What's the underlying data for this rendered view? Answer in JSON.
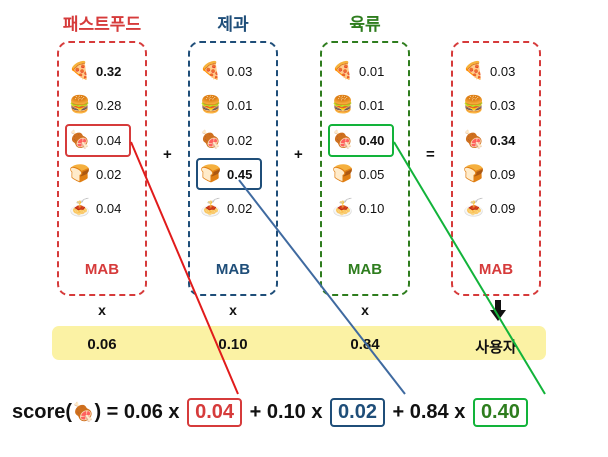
{
  "icons": {
    "pizza": "🍕",
    "burger": "🍔",
    "meat": "🍖",
    "bread": "🍞",
    "pasta": "🍝"
  },
  "colors": {
    "red": "#d63b3b",
    "blue": "#1f4e79",
    "green": "#2e7d1e",
    "bright_green": "#12b33a",
    "yellow": "#fbf2a4"
  },
  "columns": [
    {
      "title": "패스트푸드",
      "mab": "MAB",
      "weight": "0.06",
      "items": [
        {
          "icon": "pizza",
          "value": "0.32",
          "bold": true
        },
        {
          "icon": "burger",
          "value": "0.28",
          "bold": false
        },
        {
          "icon": "meat",
          "value": "0.04",
          "bold": false
        },
        {
          "icon": "bread",
          "value": "0.02",
          "bold": false
        },
        {
          "icon": "pasta",
          "value": "0.04",
          "bold": false
        }
      ]
    },
    {
      "title": "제과",
      "mab": "MAB",
      "weight": "0.10",
      "items": [
        {
          "icon": "pizza",
          "value": "0.03",
          "bold": false
        },
        {
          "icon": "burger",
          "value": "0.01",
          "bold": false
        },
        {
          "icon": "meat",
          "value": "0.02",
          "bold": false
        },
        {
          "icon": "bread",
          "value": "0.45",
          "bold": true
        },
        {
          "icon": "pasta",
          "value": "0.02",
          "bold": false
        }
      ]
    },
    {
      "title": "육류",
      "mab": "MAB",
      "weight": "0.84",
      "items": [
        {
          "icon": "pizza",
          "value": "0.01",
          "bold": false
        },
        {
          "icon": "burger",
          "value": "0.01",
          "bold": false
        },
        {
          "icon": "meat",
          "value": "0.40",
          "bold": true
        },
        {
          "icon": "bread",
          "value": "0.05",
          "bold": false
        },
        {
          "icon": "pasta",
          "value": "0.10",
          "bold": false
        }
      ]
    },
    {
      "title": "",
      "mab": "MAB",
      "weight": "사용자",
      "items": [
        {
          "icon": "pizza",
          "value": "0.03",
          "bold": false
        },
        {
          "icon": "burger",
          "value": "0.03",
          "bold": false
        },
        {
          "icon": "meat",
          "value": "0.34",
          "bold": true
        },
        {
          "icon": "bread",
          "value": "0.09",
          "bold": false
        },
        {
          "icon": "pasta",
          "value": "0.09",
          "bold": false
        }
      ]
    }
  ],
  "operators": {
    "plus": "+",
    "equals": "=",
    "times": "x"
  },
  "formula": {
    "prefix": "score(",
    "icon": "meat",
    "suffix": ") = ",
    "w1": "0.06",
    "v1": "0.04",
    "w2": "0.10",
    "v2": "0.02",
    "w3": "0.84",
    "v3": "0.40",
    "times": " x ",
    "plus": " + "
  }
}
